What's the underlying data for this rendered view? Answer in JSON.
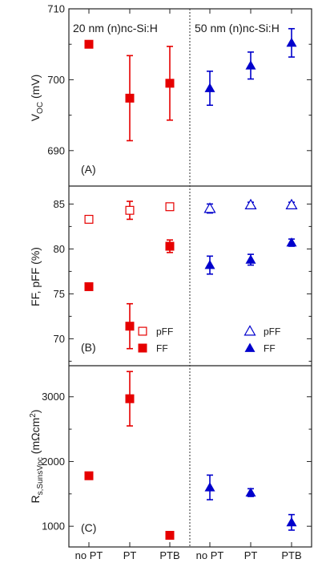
{
  "chart_data": {
    "type": "scatter",
    "categories": [
      "no PT",
      "PT",
      "PTB",
      "no PT",
      "PT",
      "PTB"
    ],
    "group_labels": [
      "20 nm (n)nc-Si:H",
      "50 nm (n)nc-Si:H"
    ],
    "colors": {
      "group1": "#e60000",
      "group2": "#0000cc"
    },
    "panels": [
      {
        "id": "A",
        "tag": "(A)",
        "ylabel": "VOC (mV)",
        "ylim": [
          685,
          710
        ],
        "yticks": [
          690,
          700,
          710
        ],
        "series": [
          {
            "name": "VOC 20 nm",
            "group": 1,
            "marker": "filled-square",
            "values": [
              705.0,
              697.4,
              699.5
            ],
            "err_low": [
              0,
              6.0,
              5.2
            ],
            "err_high": [
              0,
              6.0,
              5.2
            ]
          },
          {
            "name": "VOC 50 nm",
            "group": 2,
            "marker": "filled-triangle",
            "values": [
              698.8,
              702.0,
              705.2
            ],
            "err_low": [
              2.4,
              1.9,
              2.0
            ],
            "err_high": [
              2.4,
              1.9,
              2.0
            ]
          }
        ]
      },
      {
        "id": "B",
        "tag": "(B)",
        "ylabel": "FF, pFF (%)",
        "ylim": [
          67,
          87
        ],
        "yticks": [
          70,
          75,
          80,
          85
        ],
        "legend1": [
          "pFF",
          "FF"
        ],
        "legend2": [
          "pFF",
          "FF"
        ],
        "series": [
          {
            "name": "pFF",
            "group": 1,
            "marker": "open-square",
            "values": [
              83.3,
              84.3,
              84.7
            ],
            "err_low": [
              0,
              1.0,
              0.4
            ],
            "err_high": [
              0,
              1.0,
              0.4
            ]
          },
          {
            "name": "FF",
            "group": 1,
            "marker": "filled-square",
            "values": [
              75.8,
              71.4,
              80.3
            ],
            "err_low": [
              0,
              2.5,
              0.7
            ],
            "err_high": [
              0,
              2.5,
              0.7
            ]
          },
          {
            "name": "pFF",
            "group": 2,
            "marker": "open-triangle",
            "values": [
              84.5,
              84.9,
              84.9
            ],
            "err_low": [
              0.5,
              0.3,
              0.3
            ],
            "err_high": [
              0.5,
              0.3,
              0.3
            ]
          },
          {
            "name": "FF",
            "group": 2,
            "marker": "filled-triangle",
            "values": [
              78.2,
              78.8,
              80.7
            ],
            "err_low": [
              1.0,
              0.6,
              0.4
            ],
            "err_high": [
              1.0,
              0.6,
              0.4
            ]
          }
        ]
      },
      {
        "id": "C",
        "tag": "(C)",
        "ylabel": "Rs,SunsVoc (mΩcm2)",
        "ylim": [
          680,
          3480
        ],
        "yticks": [
          1000,
          2000,
          3000
        ],
        "series": [
          {
            "name": "Rs 20 nm",
            "group": 1,
            "marker": "filled-square",
            "values": [
              1780,
              2970,
              860
            ],
            "err_low": [
              0,
              420,
              0
            ],
            "err_high": [
              0,
              420,
              0
            ]
          },
          {
            "name": "Rs 50 nm",
            "group": 2,
            "marker": "filled-triangle",
            "values": [
              1600,
              1520,
              1060
            ],
            "err_low": [
              190,
              60,
              120
            ],
            "err_high": [
              190,
              60,
              120
            ]
          }
        ]
      }
    ]
  }
}
